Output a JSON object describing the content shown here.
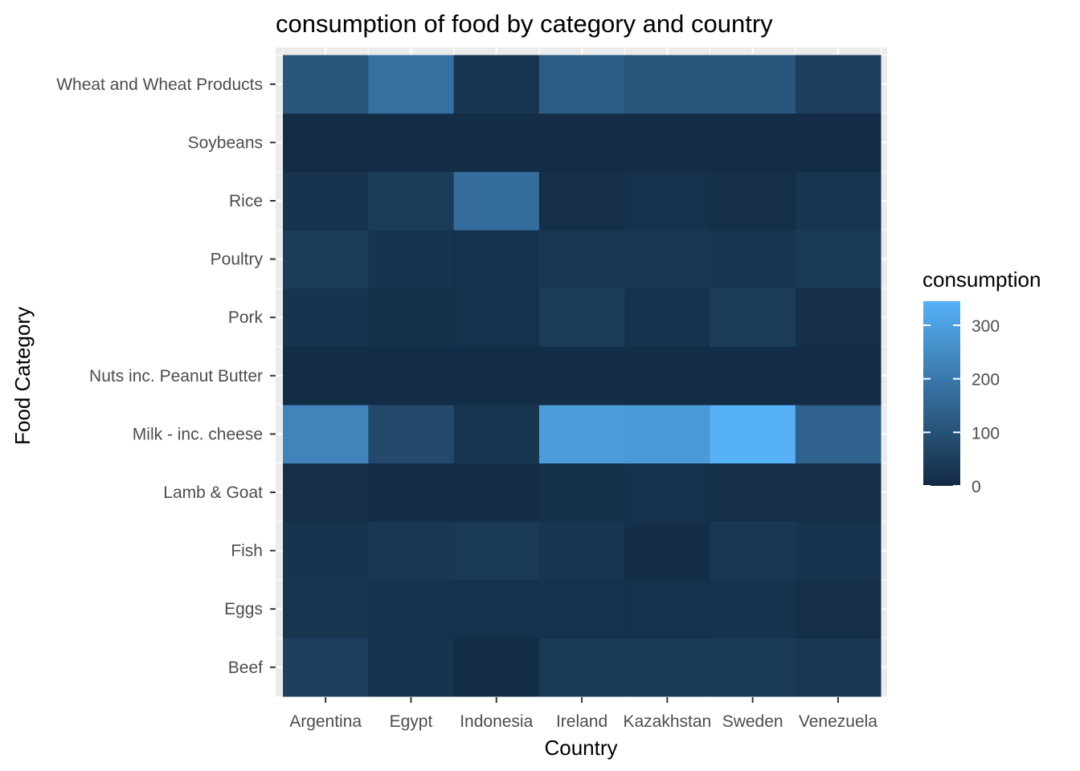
{
  "chart_data": {
    "type": "heatmap",
    "title": "consumption of food by category and country",
    "xlabel": "Country",
    "ylabel": "Food Category",
    "x_categories": [
      "Argentina",
      "Egypt",
      "Indonesia",
      "Ireland",
      "Kazakhstan",
      "Sweden",
      "Venezuela"
    ],
    "y_categories": [
      "Beef",
      "Eggs",
      "Fish",
      "Lamb & Goat",
      "Milk - inc. cheese",
      "Nuts inc. Peanut Butter",
      "Pork",
      "Poultry",
      "Rice",
      "Soybeans",
      "Wheat and Wheat Products"
    ],
    "values": [
      [
        55,
        20,
        5,
        35,
        35,
        35,
        30
      ],
      [
        25,
        15,
        15,
        15,
        15,
        18,
        10
      ],
      [
        20,
        30,
        35,
        25,
        8,
        30,
        20
      ],
      [
        10,
        8,
        8,
        12,
        15,
        10,
        10
      ],
      [
        230,
        80,
        25,
        290,
        285,
        345,
        140
      ],
      [
        5,
        5,
        5,
        5,
        5,
        5,
        3
      ],
      [
        20,
        12,
        15,
        40,
        18,
        45,
        10
      ],
      [
        45,
        22,
        15,
        30,
        30,
        25,
        35
      ],
      [
        20,
        45,
        170,
        10,
        15,
        10,
        25
      ],
      [
        3,
        3,
        5,
        3,
        3,
        3,
        3
      ],
      [
        110,
        180,
        25,
        125,
        110,
        110,
        50
      ]
    ],
    "legend": {
      "title": "consumption",
      "breaks": [
        0,
        100,
        200,
        300
      ],
      "labels": [
        "0",
        "100",
        "200",
        "300"
      ],
      "range": [
        0,
        345
      ],
      "low_color": "#132B43",
      "high_color": "#56B1F7",
      "placement": "right"
    },
    "panel_background": "#ebebeb",
    "gridline_color": "#ffffff",
    "grid": true
  }
}
